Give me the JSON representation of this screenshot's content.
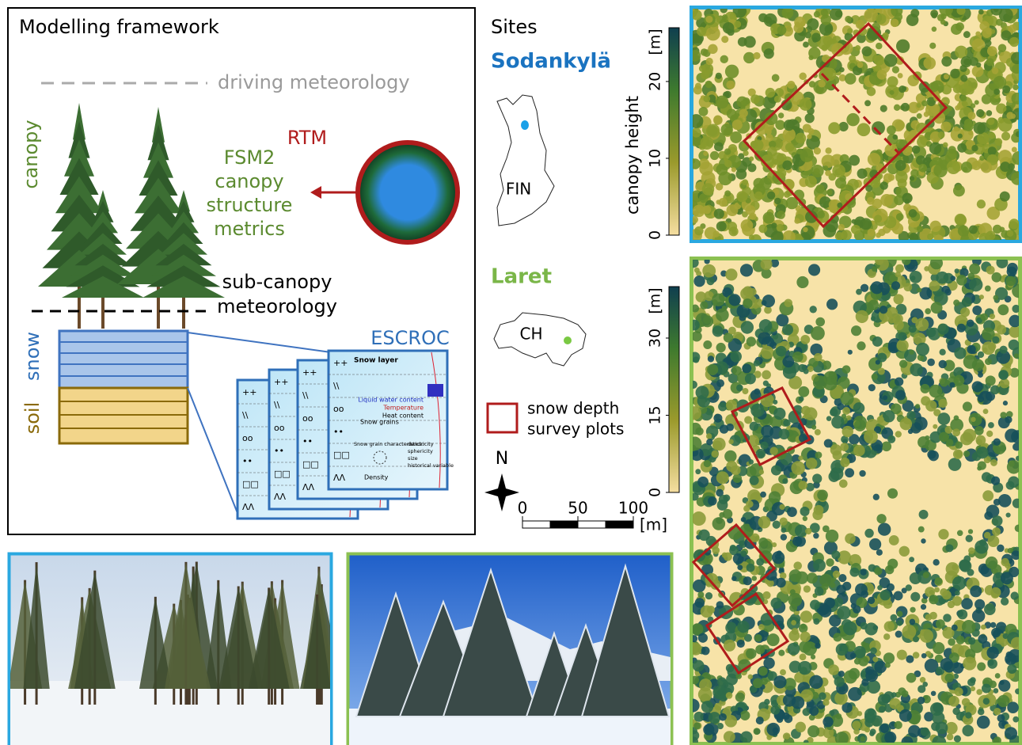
{
  "framework": {
    "title": "Modelling framework",
    "driving": "driving meteorology",
    "canopy": "canopy",
    "fsm2": [
      "FSM2",
      "canopy",
      "structure",
      "metrics"
    ],
    "rtm": "RTM",
    "sub_canopy": [
      "sub-canopy",
      "meteorology"
    ],
    "snow": "snow",
    "soil": "soil",
    "escroc": "ESCROC",
    "snow_layer": {
      "title": "Snow layer",
      "symbols": [
        "++",
        "\\\\",
        "oo",
        "••",
        "□□",
        "ΛΛ"
      ],
      "liquid": "Liquid water content",
      "temperature": "Temperature",
      "heat": "Heat content",
      "grains": "Snow grains",
      "characteristics": "Snow grain characteristics:",
      "properties": [
        "dendricity",
        "sphericity",
        "size",
        "historical variable"
      ],
      "density": "Density"
    }
  },
  "sites": {
    "title": "Sites",
    "site1": {
      "name": "Sodankylä",
      "country": "FIN"
    },
    "site2": {
      "name": "Laret",
      "country": "CH"
    },
    "legend": [
      "snow depth",
      "survey plots"
    ],
    "north": "N",
    "scalebar": {
      "xlim": [
        0,
        100
      ],
      "ticks": [
        0,
        50,
        100
      ],
      "unit": "[m]"
    }
  },
  "colorbars": [
    {
      "label": "canopy height",
      "unit": "[m]",
      "lim": [
        0,
        27
      ],
      "ticks": [
        0,
        10,
        20
      ]
    },
    {
      "unit": "[m]",
      "lim": [
        0,
        40
      ],
      "ticks": [
        0,
        15,
        30
      ]
    }
  ]
}
